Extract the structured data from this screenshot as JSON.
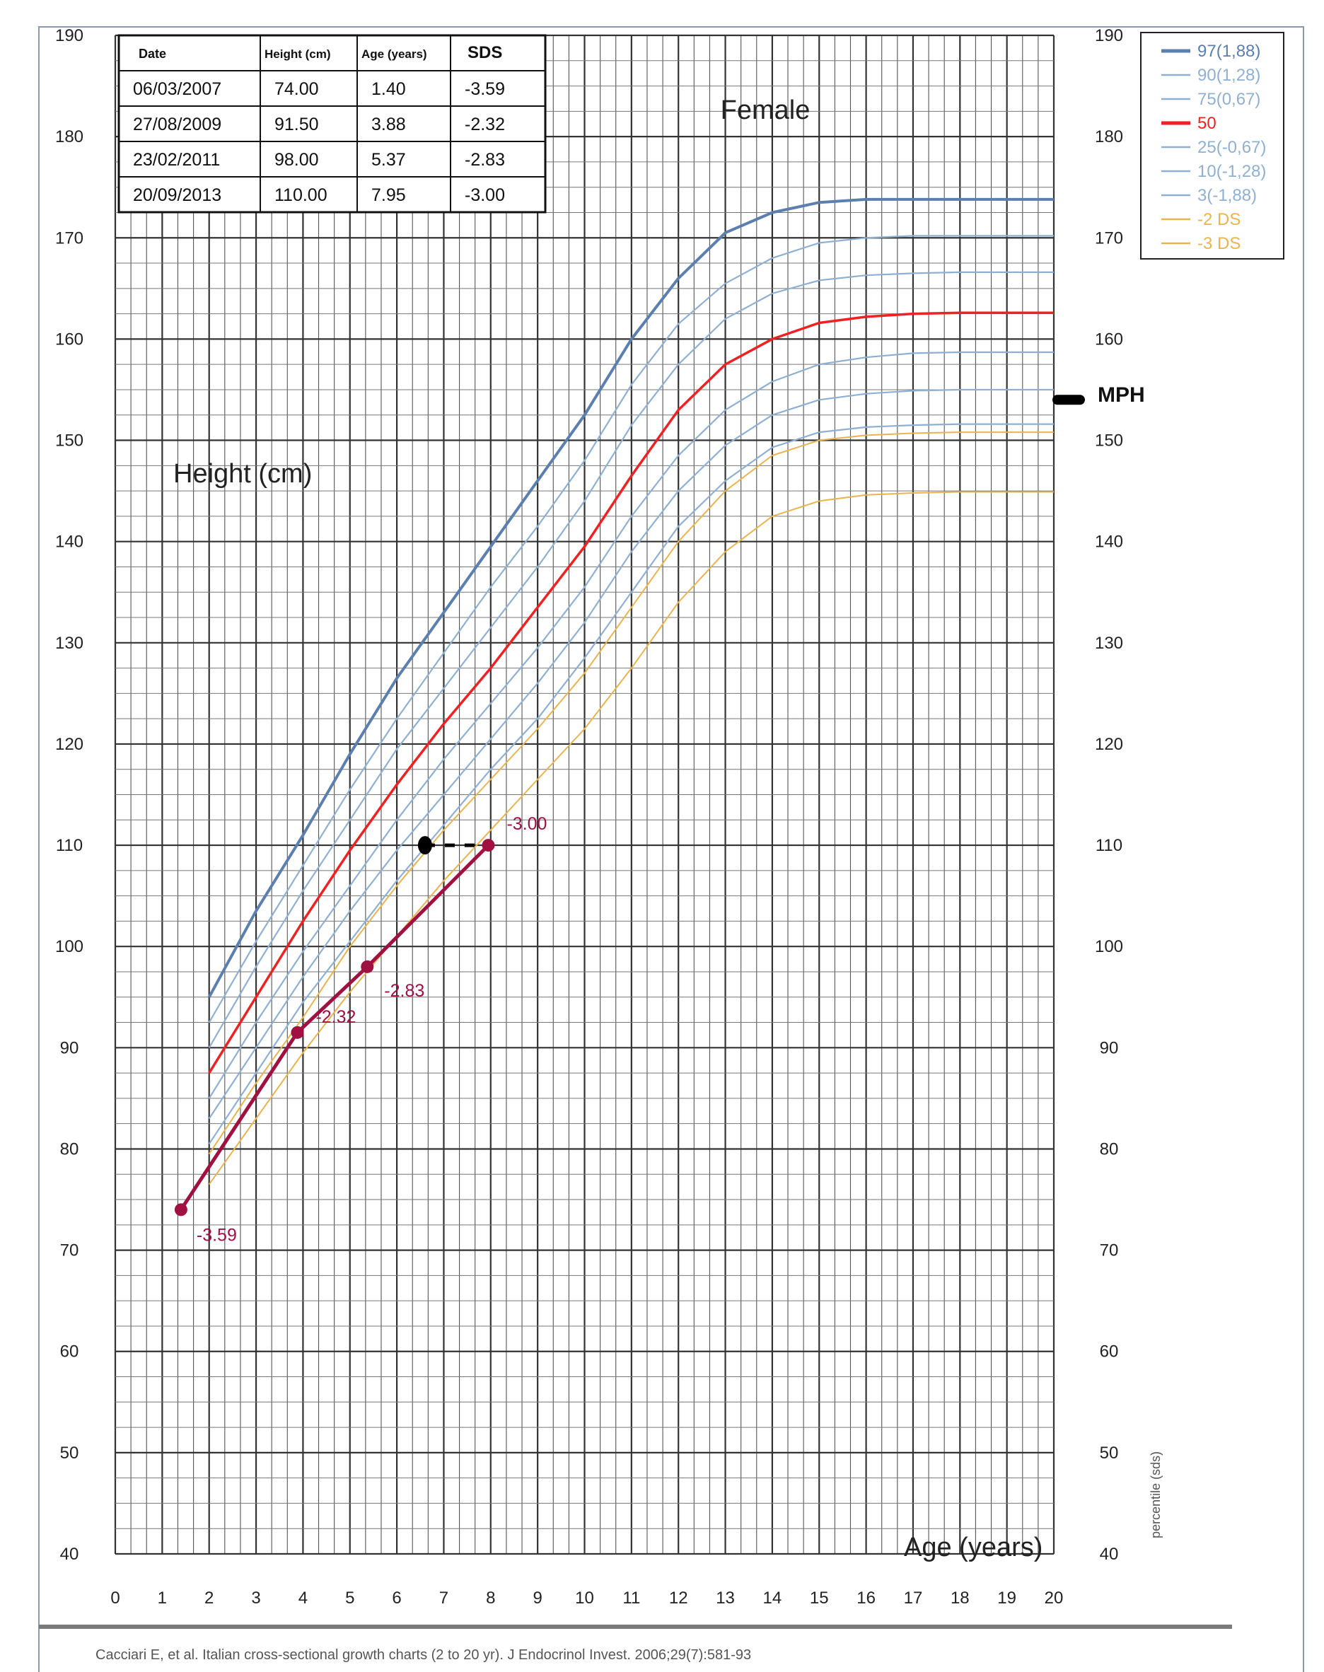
{
  "chart_data": {
    "type": "line",
    "sex_label": "Female",
    "ylabel": "Height (cm)",
    "xlabel": "Age (years)",
    "side_label": "percentile (sds)",
    "mph_label": "MPH",
    "mph_value": 154,
    "citation": "Cacciari E, et al. Italian cross-sectional growth charts (2 to 20 yr). J Endocrinol Invest. 2006;29(7):581-93",
    "xlim": [
      0,
      20
    ],
    "ylim": [
      40,
      190
    ],
    "x_ticks": [
      0,
      1,
      2,
      3,
      4,
      5,
      6,
      7,
      8,
      9,
      10,
      11,
      12,
      13,
      14,
      15,
      16,
      17,
      18,
      19,
      20
    ],
    "y_ticks": [
      40,
      50,
      60,
      70,
      80,
      90,
      100,
      110,
      120,
      130,
      140,
      150,
      160,
      170,
      180,
      190
    ],
    "grid": true,
    "legend_position": "top-right outside",
    "colors": {
      "high": "#5b7fae",
      "mid": "#8fb0d2",
      "p50": "#ee2222",
      "sd": "#e8b450",
      "patient": "#a01040",
      "marker": "#000000",
      "frame": "#8a99ad"
    },
    "table": {
      "headers": [
        "Date",
        "Height (cm)",
        "Age (years)",
        "SDS"
      ],
      "rows": [
        [
          "06/03/2007",
          "74.00",
          "1.40",
          "-3.59"
        ],
        [
          "27/08/2009",
          "91.50",
          "3.88",
          "-2.32"
        ],
        [
          "23/02/2011",
          "98.00",
          "5.37",
          "-2.83"
        ],
        [
          "20/09/2013",
          "110.00",
          "7.95",
          "-3.00"
        ]
      ]
    },
    "series": [
      {
        "name": "97(1,88)",
        "role": "high",
        "x": [
          2,
          3,
          4,
          5,
          6,
          7,
          8,
          9,
          10,
          11,
          12,
          13,
          14,
          15,
          16,
          17,
          18,
          19,
          20
        ],
        "y": [
          95,
          103.5,
          111,
          119,
          126.5,
          133,
          139.5,
          146,
          152.5,
          160,
          166,
          170.5,
          172.5,
          173.5,
          173.8,
          173.8,
          173.8,
          173.8,
          173.8
        ]
      },
      {
        "name": "90(1,28)",
        "role": "mid",
        "x": [
          2,
          3,
          4,
          5,
          6,
          7,
          8,
          9,
          10,
          11,
          12,
          13,
          14,
          15,
          16,
          17,
          18,
          19,
          20
        ],
        "y": [
          92.5,
          100.5,
          108,
          115.5,
          122.5,
          129,
          135.5,
          141.5,
          148,
          155.5,
          161.5,
          165.5,
          168,
          169.5,
          170,
          170.2,
          170.2,
          170.2,
          170.2
        ]
      },
      {
        "name": "75(0,67)",
        "role": "mid",
        "x": [
          2,
          3,
          4,
          5,
          6,
          7,
          8,
          9,
          10,
          11,
          12,
          13,
          14,
          15,
          16,
          17,
          18,
          19,
          20
        ],
        "y": [
          90,
          98,
          105.5,
          112.5,
          119.5,
          125.5,
          131.5,
          137.5,
          144,
          151.5,
          157.5,
          162,
          164.5,
          165.8,
          166.3,
          166.5,
          166.6,
          166.6,
          166.6
        ]
      },
      {
        "name": "50",
        "role": "p50",
        "x": [
          2,
          3,
          4,
          5,
          6,
          7,
          8,
          9,
          10,
          11,
          12,
          13,
          14,
          15,
          16,
          17,
          18,
          19,
          20
        ],
        "y": [
          87.5,
          95,
          102.5,
          109.5,
          116,
          122,
          127.5,
          133.5,
          139.5,
          146.5,
          153,
          157.5,
          160,
          161.6,
          162.2,
          162.5,
          162.6,
          162.6,
          162.6
        ]
      },
      {
        "name": "25(-0,67)",
        "role": "mid",
        "x": [
          2,
          3,
          4,
          5,
          6,
          7,
          8,
          9,
          10,
          11,
          12,
          13,
          14,
          15,
          16,
          17,
          18,
          19,
          20
        ],
        "y": [
          85,
          92.5,
          99.5,
          106,
          112.5,
          118.5,
          124,
          129.5,
          135.5,
          142.5,
          148.5,
          153,
          155.8,
          157.5,
          158.2,
          158.6,
          158.7,
          158.7,
          158.7
        ]
      },
      {
        "name": "10(-1,28)",
        "role": "mid",
        "x": [
          2,
          3,
          4,
          5,
          6,
          7,
          8,
          9,
          10,
          11,
          12,
          13,
          14,
          15,
          16,
          17,
          18,
          19,
          20
        ],
        "y": [
          83,
          90,
          97,
          103.5,
          109.5,
          115,
          120.5,
          126,
          132,
          139,
          145,
          149.5,
          152.5,
          154,
          154.6,
          154.9,
          155,
          155,
          155
        ]
      },
      {
        "name": "3(-1,88)",
        "role": "mid",
        "x": [
          2,
          3,
          4,
          5,
          6,
          7,
          8,
          9,
          10,
          11,
          12,
          13,
          14,
          15,
          16,
          17,
          18,
          19,
          20
        ],
        "y": [
          80.5,
          87.5,
          94.5,
          100.5,
          106.5,
          112,
          117.5,
          122.5,
          128.5,
          135,
          141.5,
          146,
          149.3,
          150.8,
          151.3,
          151.5,
          151.6,
          151.6,
          151.6
        ]
      },
      {
        "name": "-2 DS",
        "role": "sd",
        "x": [
          2,
          3,
          4,
          5,
          6,
          7,
          8,
          9,
          10,
          11,
          12,
          13,
          14,
          15,
          16,
          17,
          18,
          19,
          20
        ],
        "y": [
          79.5,
          86.5,
          93,
          100,
          106,
          111.5,
          116.5,
          121.5,
          127,
          133.5,
          140,
          145,
          148.5,
          150,
          150.5,
          150.7,
          150.8,
          150.8,
          150.8
        ]
      },
      {
        "name": "-3 DS",
        "role": "sd",
        "x": [
          2,
          3,
          4,
          5,
          6,
          7,
          8,
          9,
          10,
          11,
          12,
          13,
          14,
          15,
          16,
          17,
          18,
          19,
          20
        ],
        "y": [
          76.5,
          83,
          89.5,
          95.5,
          101,
          106.5,
          111.5,
          116.5,
          121.5,
          127.5,
          134,
          139,
          142.5,
          144,
          144.6,
          144.8,
          144.9,
          144.9,
          144.9
        ]
      }
    ],
    "patient": {
      "x": [
        1.4,
        3.88,
        5.37,
        7.95
      ],
      "y": [
        74.0,
        91.5,
        98.0,
        110.0
      ],
      "labels": [
        "-3.59",
        "-2.32",
        "-2.83",
        "-3.00"
      ]
    },
    "height_age_marker": {
      "x": 6.6,
      "y": 110
    }
  }
}
